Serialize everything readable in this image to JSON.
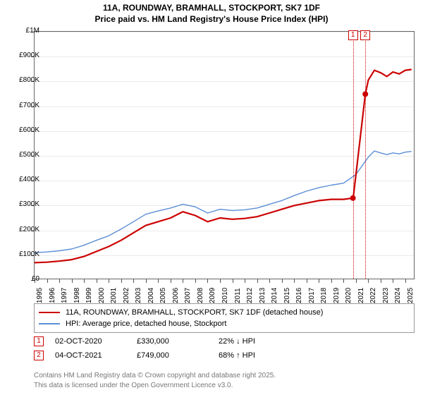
{
  "title_line1": "11A, ROUNDWAY, BRAMHALL, STOCKPORT, SK7 1DF",
  "title_line2": "Price paid vs. HM Land Registry's House Price Index (HPI)",
  "chart": {
    "type": "line",
    "background_color": "#ffffff",
    "grid_color": "#eaeaea",
    "axis_color": "#666666",
    "xlim": [
      1995,
      2025.8
    ],
    "ylim": [
      0,
      1000000
    ],
    "yticks": [
      0,
      100000,
      200000,
      300000,
      400000,
      500000,
      600000,
      700000,
      800000,
      900000,
      1000000
    ],
    "ytick_labels": [
      "£0",
      "£100K",
      "£200K",
      "£300K",
      "£400K",
      "£500K",
      "£600K",
      "£700K",
      "£800K",
      "£900K",
      "£1M"
    ],
    "xticks_major": [
      1995,
      1996,
      1997,
      1998,
      1999,
      2000,
      2001,
      2002,
      2003,
      2004,
      2005,
      2006,
      2007,
      2008,
      2009,
      2010,
      2011,
      2012,
      2013,
      2014,
      2015,
      2016,
      2017,
      2018,
      2019,
      2020,
      2021,
      2022,
      2023,
      2024,
      2025
    ],
    "label_fontsize": 10,
    "series": [
      {
        "id": "price_paid",
        "label": "11A, ROUNDWAY, BRAMHALL, STOCKPORT, SK7 1DF (detached house)",
        "color": "#cc0000",
        "line_width": 2.2,
        "data": [
          [
            1995,
            70000
          ],
          [
            1996,
            72000
          ],
          [
            1997,
            76000
          ],
          [
            1998,
            82000
          ],
          [
            1999,
            95000
          ],
          [
            2000,
            115000
          ],
          [
            2001,
            135000
          ],
          [
            2002,
            160000
          ],
          [
            2003,
            190000
          ],
          [
            2004,
            220000
          ],
          [
            2005,
            235000
          ],
          [
            2006,
            250000
          ],
          [
            2007,
            275000
          ],
          [
            2008,
            260000
          ],
          [
            2009,
            235000
          ],
          [
            2010,
            250000
          ],
          [
            2011,
            245000
          ],
          [
            2012,
            248000
          ],
          [
            2013,
            255000
          ],
          [
            2014,
            270000
          ],
          [
            2015,
            285000
          ],
          [
            2016,
            300000
          ],
          [
            2017,
            310000
          ],
          [
            2018,
            320000
          ],
          [
            2019,
            325000
          ],
          [
            2020,
            325000
          ],
          [
            2020.76,
            330000
          ],
          [
            2020.78,
            330000
          ],
          [
            2021.76,
            749000
          ],
          [
            2022,
            805000
          ],
          [
            2022.5,
            845000
          ],
          [
            2023,
            835000
          ],
          [
            2023.5,
            820000
          ],
          [
            2024,
            838000
          ],
          [
            2024.5,
            830000
          ],
          [
            2025,
            845000
          ],
          [
            2025.5,
            848000
          ]
        ]
      },
      {
        "id": "hpi",
        "label": "HPI: Average price, detached house, Stockport",
        "color": "#5b8fd6",
        "line_width": 1.4,
        "data": [
          [
            1995,
            110000
          ],
          [
            1996,
            113000
          ],
          [
            1997,
            118000
          ],
          [
            1998,
            125000
          ],
          [
            1999,
            140000
          ],
          [
            2000,
            160000
          ],
          [
            2001,
            178000
          ],
          [
            2002,
            205000
          ],
          [
            2003,
            235000
          ],
          [
            2004,
            265000
          ],
          [
            2005,
            278000
          ],
          [
            2006,
            290000
          ],
          [
            2007,
            305000
          ],
          [
            2008,
            295000
          ],
          [
            2009,
            270000
          ],
          [
            2010,
            285000
          ],
          [
            2011,
            280000
          ],
          [
            2012,
            283000
          ],
          [
            2013,
            290000
          ],
          [
            2014,
            305000
          ],
          [
            2015,
            320000
          ],
          [
            2016,
            340000
          ],
          [
            2017,
            358000
          ],
          [
            2018,
            372000
          ],
          [
            2019,
            382000
          ],
          [
            2020,
            390000
          ],
          [
            2021,
            425000
          ],
          [
            2022,
            495000
          ],
          [
            2022.5,
            520000
          ],
          [
            2023,
            512000
          ],
          [
            2023.5,
            505000
          ],
          [
            2024,
            512000
          ],
          [
            2024.5,
            508000
          ],
          [
            2025,
            515000
          ],
          [
            2025.5,
            518000
          ]
        ]
      }
    ],
    "vlines": [
      {
        "x": 2020.76,
        "color": "#cc0000",
        "label": "1"
      },
      {
        "x": 2021.76,
        "color": "#cc0000",
        "label": "2"
      }
    ],
    "markers": [
      {
        "x": 2020.76,
        "y": 330000,
        "color": "#cc0000"
      },
      {
        "x": 2021.76,
        "y": 749000,
        "color": "#cc0000"
      }
    ]
  },
  "legend": {
    "items": [
      {
        "color": "#cc0000",
        "thickness": 2.2
      },
      {
        "color": "#5b8fd6",
        "thickness": 1.4
      }
    ]
  },
  "markers_table": [
    {
      "num": "1",
      "color": "#cc0000",
      "date": "02-OCT-2020",
      "price": "£330,000",
      "delta": "22% ↓ HPI"
    },
    {
      "num": "2",
      "color": "#cc0000",
      "date": "04-OCT-2021",
      "price": "£749,000",
      "delta": "68% ↑ HPI"
    }
  ],
  "footer": {
    "line1": "Contains HM Land Registry data © Crown copyright and database right 2025.",
    "line2": "This data is licensed under the Open Government Licence v3.0."
  }
}
